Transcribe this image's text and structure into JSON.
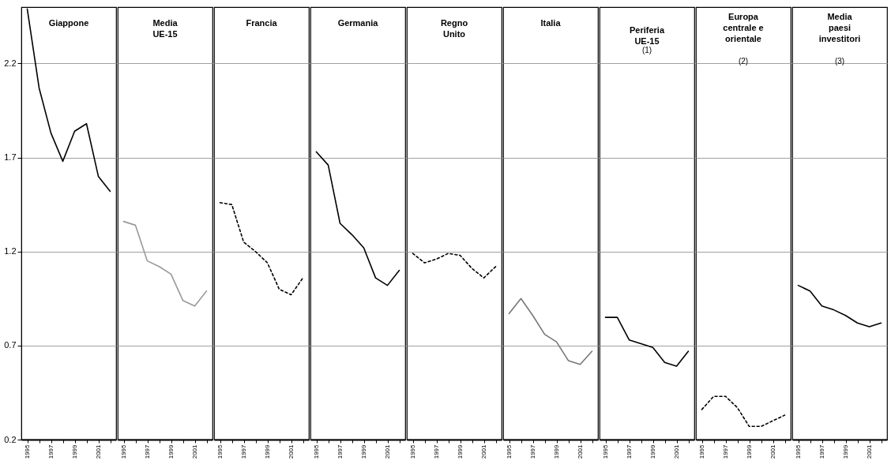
{
  "chart_data": [
    {
      "type": "line",
      "title": "Giappone",
      "categories": [
        "1995",
        null,
        "1997",
        null,
        "1999",
        null,
        "2001",
        null
      ],
      "values": [
        2.49,
        2.07,
        1.83,
        1.68,
        1.84,
        1.88,
        1.6,
        1.52
      ],
      "color": "#000000",
      "line_style": "solid",
      "ylim": [
        0.2,
        2.5
      ],
      "yticks": [
        0.2,
        0.7,
        1.2,
        1.7,
        2.2
      ],
      "grid": "y"
    },
    {
      "type": "line",
      "title": "Media UE-15",
      "categories": [
        "1995",
        null,
        "1997",
        null,
        "1999",
        null,
        "2001",
        null
      ],
      "values": [
        1.36,
        1.34,
        1.15,
        1.12,
        1.08,
        0.94,
        0.91,
        0.99
      ],
      "color": "#999999",
      "line_style": "solid",
      "ylim": [
        0.2,
        2.5
      ],
      "yticks": [
        0.2,
        0.7,
        1.2,
        1.7,
        2.2
      ],
      "grid": "y",
      "tick_labels": "x"
    },
    {
      "type": "line",
      "title": "Francia",
      "categories": [
        "1995",
        null,
        "1997",
        null,
        "1999",
        null,
        "2001",
        null
      ],
      "values": [
        1.46,
        1.45,
        1.25,
        1.2,
        1.14,
        1.0,
        0.97,
        1.06
      ],
      "color": "#000000",
      "line_style": "dashed",
      "ylim": [
        0.2,
        2.5
      ],
      "yticks": [
        0.2,
        0.7,
        1.2,
        1.7,
        2.2
      ],
      "grid": "y",
      "tick_labels": "x"
    },
    {
      "type": "line",
      "title": "Germania",
      "categories": [
        "1995",
        null,
        "1997",
        null,
        "1999",
        null,
        "2001",
        null
      ],
      "values": [
        1.73,
        1.66,
        1.35,
        1.29,
        1.22,
        1.06,
        1.02,
        1.1
      ],
      "color": "#000000",
      "line_style": "solid",
      "ylim": [
        0.2,
        2.5
      ],
      "yticks": [
        0.2,
        0.7,
        1.2,
        1.7,
        2.2
      ],
      "grid": "y",
      "tick_labels": "x"
    },
    {
      "type": "line",
      "title": "Regno Unito",
      "categories": [
        "1995",
        null,
        "1997",
        null,
        "1999",
        null,
        "2001",
        null
      ],
      "values": [
        1.19,
        1.14,
        1.16,
        1.19,
        1.18,
        1.11,
        1.06,
        1.12
      ],
      "color": "#000000",
      "line_style": "dashed",
      "ylim": [
        0.2,
        2.5
      ],
      "yticks": [
        0.2,
        0.7,
        1.2,
        1.7,
        2.2
      ],
      "grid": "y",
      "tick_labels": "x"
    },
    {
      "type": "line",
      "title": "Italia",
      "categories": [
        "1995",
        null,
        "1997",
        null,
        "1999",
        null,
        "2001",
        null
      ],
      "values": [
        0.87,
        0.95,
        0.86,
        0.76,
        0.72,
        0.62,
        0.6,
        0.67
      ],
      "color": "#777777",
      "line_style": "solid",
      "ylim": [
        0.2,
        2.5
      ],
      "yticks": [
        0.2,
        0.7,
        1.2,
        1.7,
        2.2
      ],
      "grid": "y",
      "tick_labels": "x"
    },
    {
      "type": "line",
      "title": "Periferia UE-15",
      "subtitle": "(1)",
      "categories": [
        "1995",
        null,
        "1997",
        null,
        "1999",
        null,
        "2001",
        null
      ],
      "values": [
        0.85,
        0.85,
        0.73,
        0.71,
        0.69,
        0.61,
        0.59,
        0.67
      ],
      "color": "#000000",
      "line_style": "solid",
      "ylim": [
        0.2,
        2.5
      ],
      "yticks": [
        0.2,
        0.7,
        1.2,
        1.7,
        2.2
      ],
      "grid": "y",
      "tick_labels": "x"
    },
    {
      "type": "line",
      "title": "Europa centrale e orientale",
      "subtitle": "(2)",
      "categories": [
        "1995",
        null,
        "1997",
        null,
        "1999",
        null,
        "2001",
        null
      ],
      "values": [
        0.36,
        0.43,
        0.43,
        0.37,
        0.27,
        0.27,
        0.3,
        0.33
      ],
      "color": "#000000",
      "line_style": "dashed",
      "ylim": [
        0.2,
        2.5
      ],
      "yticks": [
        0.2,
        0.7,
        1.2,
        1.7,
        2.2
      ],
      "grid": "y",
      "tick_labels": "x"
    },
    {
      "type": "line",
      "title": "Media paesi investitori",
      "subtitle": "(3)",
      "categories": [
        "1995",
        null,
        "1997",
        null,
        "1999",
        null,
        "2001",
        null
      ],
      "values": [
        1.02,
        0.99,
        0.91,
        0.89,
        0.86,
        0.82,
        0.8,
        0.82
      ],
      "color": "#000000",
      "line_style": "solid",
      "ylim": [
        0.2,
        2.5
      ],
      "yticks": [
        0.2,
        0.7,
        1.2,
        1.7,
        2.2
      ],
      "grid": "y",
      "tick_labels": "x"
    }
  ]
}
